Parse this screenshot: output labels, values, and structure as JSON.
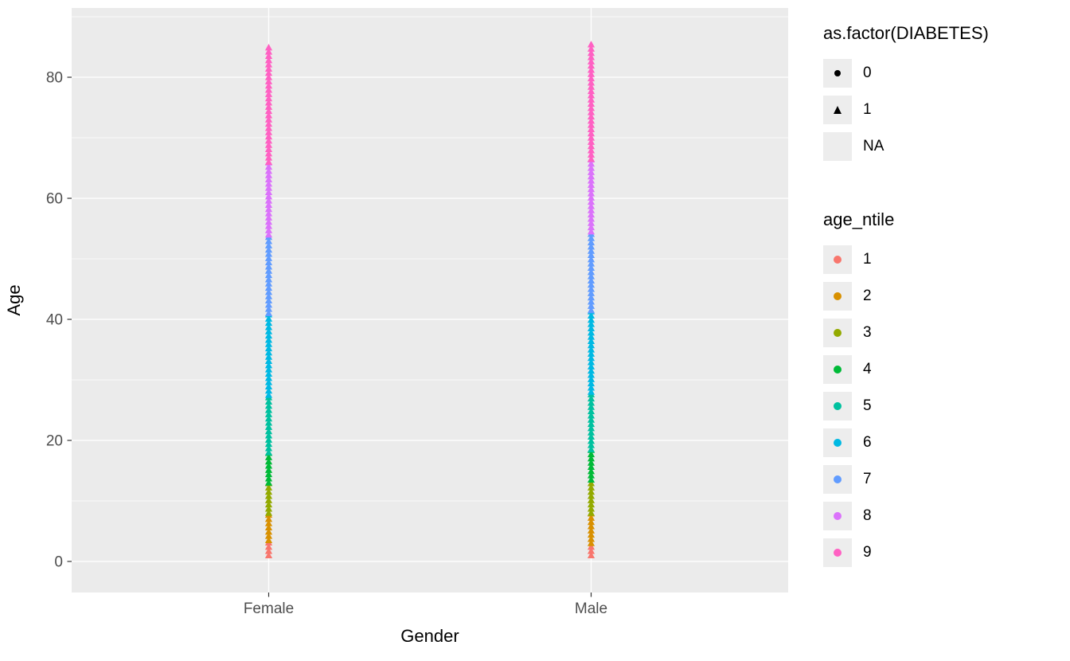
{
  "figure": {
    "background": "#FFFFFF"
  },
  "panel": {
    "background": "#EBEBEB",
    "grid_color": "#FFFFFF",
    "tick_color": "#333333",
    "tick_label_color": "#4D4D4D"
  },
  "axes": {
    "x": {
      "title": "Gender",
      "categories": [
        "Female",
        "Male"
      ]
    },
    "y": {
      "title": "Age",
      "tick_labels": [
        "0",
        "20",
        "40",
        "60",
        "80"
      ]
    }
  },
  "legends": [
    {
      "title": "as.factor(DIABETES)",
      "entries": [
        {
          "label": "0",
          "glyph": "circle"
        },
        {
          "label": "1",
          "glyph": "triangle"
        },
        {
          "label": "NA",
          "glyph": "none"
        }
      ]
    },
    {
      "title": "age_ntile",
      "entries": [
        {
          "label": "1",
          "color": "#F8766D"
        },
        {
          "label": "2",
          "color": "#D89000"
        },
        {
          "label": "3",
          "color": "#93AA00"
        },
        {
          "label": "4",
          "color": "#00BA38"
        },
        {
          "label": "5",
          "color": "#00C19F"
        },
        {
          "label": "6",
          "color": "#00B9E3"
        },
        {
          "label": "7",
          "color": "#619CFF"
        },
        {
          "label": "8",
          "color": "#DB72FB"
        },
        {
          "label": "9",
          "color": "#FF61C3"
        }
      ]
    }
  ],
  "chart_data": {
    "type": "scatter",
    "title": "",
    "xlabel": "Gender",
    "ylabel": "Age",
    "x_categories": [
      "Female",
      "Male"
    ],
    "y_ticks": [
      0,
      20,
      40,
      60,
      80
    ],
    "y_minor_ticks": [
      10,
      30,
      50,
      70,
      90
    ],
    "ylim": [
      -5,
      91
    ],
    "marker_shape_by": "as.factor(DIABETES)",
    "marker_color_by": "age_ntile",
    "visible_marker": "triangle",
    "palette": {
      "1": "#F8766D",
      "2": "#D89000",
      "3": "#93AA00",
      "4": "#00BA38",
      "5": "#00C19F",
      "6": "#00B9E3",
      "7": "#619CFF",
      "8": "#DB72FB",
      "9": "#FF61C3"
    },
    "series": [
      {
        "gender": "Female",
        "age_ntile": 1,
        "shape": "triangle",
        "age_range": [
          1,
          3.5
        ]
      },
      {
        "gender": "Female",
        "age_ntile": 2,
        "shape": "triangle",
        "age_range": [
          3.5,
          8
        ]
      },
      {
        "gender": "Female",
        "age_ntile": 3,
        "shape": "triangle",
        "age_range": [
          8,
          13
        ]
      },
      {
        "gender": "Female",
        "age_ntile": 4,
        "shape": "triangle",
        "age_range": [
          13,
          18
        ]
      },
      {
        "gender": "Female",
        "age_ntile": 5,
        "shape": "triangle",
        "age_range": [
          18,
          27.5
        ]
      },
      {
        "gender": "Female",
        "age_ntile": 6,
        "shape": "triangle",
        "age_range": [
          27.5,
          41
        ]
      },
      {
        "gender": "Female",
        "age_ntile": 7,
        "shape": "triangle",
        "age_range": [
          41,
          54
        ]
      },
      {
        "gender": "Female",
        "age_ntile": 8,
        "shape": "triangle",
        "age_range": [
          54,
          66
        ]
      },
      {
        "gender": "Female",
        "age_ntile": 9,
        "shape": "triangle",
        "age_range": [
          66,
          85.5
        ]
      },
      {
        "gender": "Male",
        "age_ntile": 1,
        "shape": "triangle",
        "age_range": [
          1,
          3
        ]
      },
      {
        "gender": "Male",
        "age_ntile": 2,
        "shape": "triangle",
        "age_range": [
          3,
          8
        ]
      },
      {
        "gender": "Male",
        "age_ntile": 3,
        "shape": "triangle",
        "age_range": [
          8,
          13.5
        ]
      },
      {
        "gender": "Male",
        "age_ntile": 4,
        "shape": "triangle",
        "age_range": [
          13.5,
          18.5
        ]
      },
      {
        "gender": "Male",
        "age_ntile": 5,
        "shape": "triangle",
        "age_range": [
          18.5,
          28
        ]
      },
      {
        "gender": "Male",
        "age_ntile": 6,
        "shape": "triangle",
        "age_range": [
          28,
          41.5
        ]
      },
      {
        "gender": "Male",
        "age_ntile": 7,
        "shape": "triangle",
        "age_range": [
          41.5,
          54.5
        ]
      },
      {
        "gender": "Male",
        "age_ntile": 8,
        "shape": "triangle",
        "age_range": [
          54.5,
          66.5
        ]
      },
      {
        "gender": "Male",
        "age_ntile": 9,
        "shape": "triangle",
        "age_range": [
          66.5,
          85.5
        ]
      }
    ]
  }
}
